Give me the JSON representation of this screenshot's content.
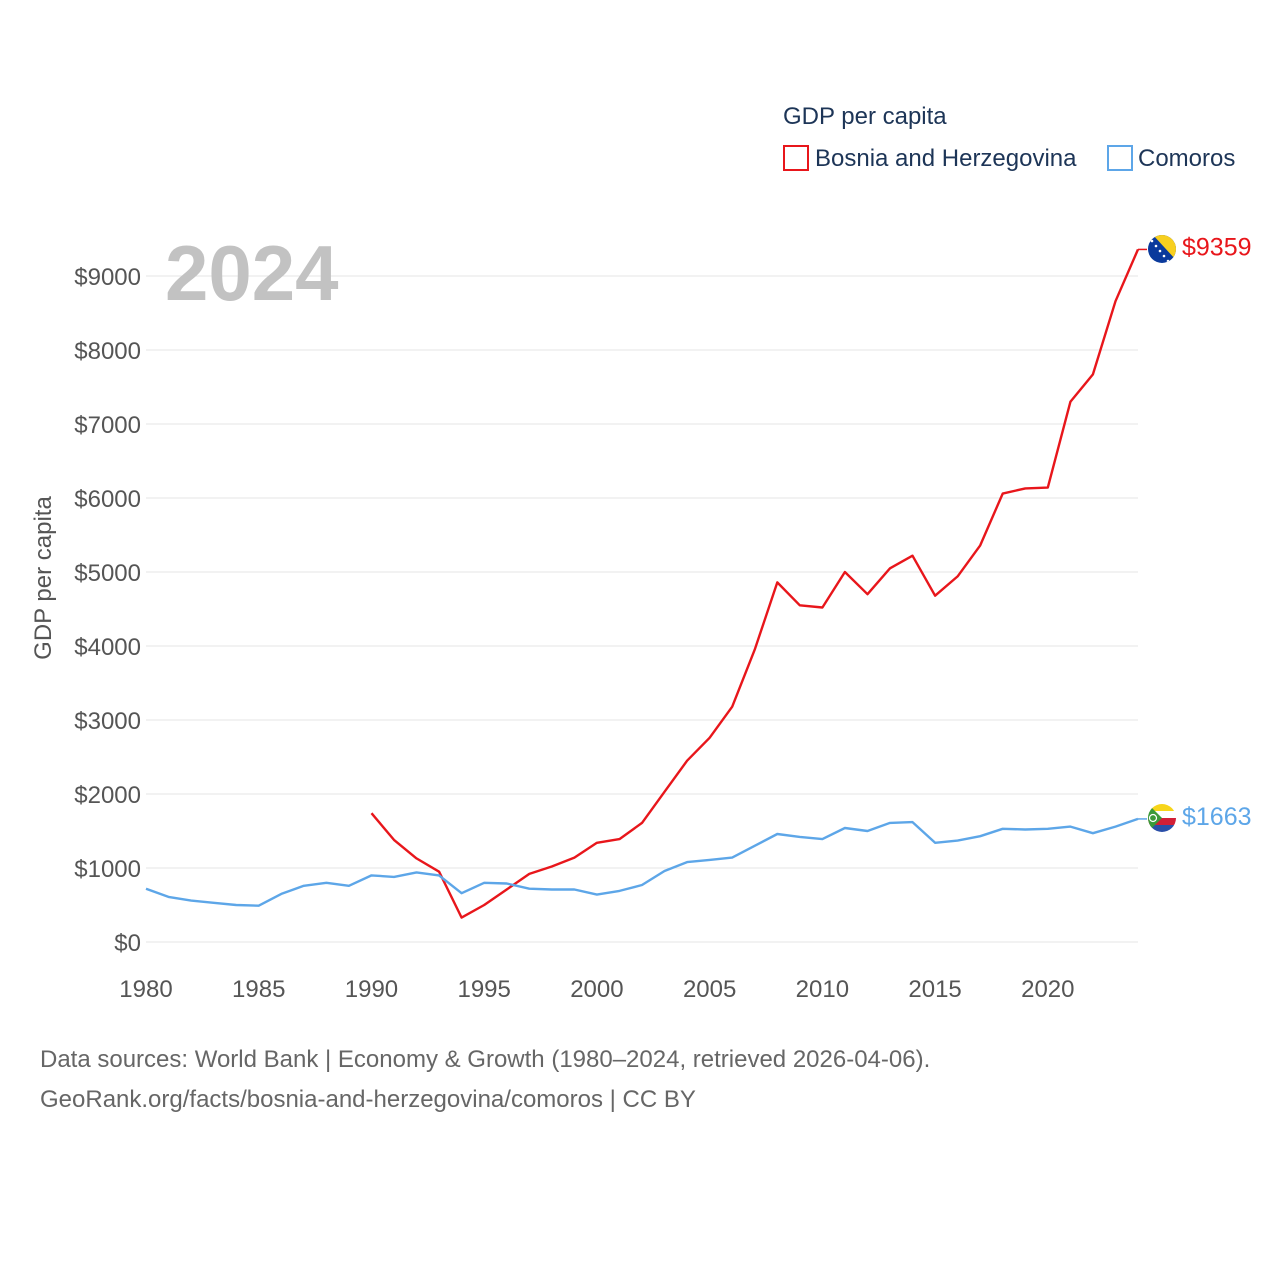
{
  "chart_data": {
    "type": "line",
    "title": "GDP per capita",
    "year_label": "2024",
    "ylabel": "GDP per capita",
    "xlabel": "",
    "xlim": [
      1980,
      2024
    ],
    "ylim": [
      0,
      9600
    ],
    "x_ticks": [
      1980,
      1985,
      1990,
      1995,
      2000,
      2005,
      2010,
      2015,
      2020
    ],
    "y_ticks": [
      0,
      1000,
      2000,
      3000,
      4000,
      5000,
      6000,
      7000,
      8000,
      9000
    ],
    "y_tick_labels": [
      "$0",
      "$1000",
      "$2000",
      "$3000",
      "$4000",
      "$5000",
      "$6000",
      "$7000",
      "$8000",
      "$9000"
    ],
    "grid": true,
    "legend_position": "top-right",
    "series": [
      {
        "name": "Bosnia and Herzegovina",
        "color": "#e8161b",
        "end_label": "$9359",
        "flag_icon": "bosnia-flag-icon",
        "x": [
          1990,
          1991,
          1992,
          1993,
          1994,
          1995,
          1996,
          1997,
          1998,
          1999,
          2000,
          2001,
          2002,
          2003,
          2004,
          2005,
          2006,
          2007,
          2008,
          2009,
          2010,
          2011,
          2012,
          2013,
          2014,
          2015,
          2016,
          2017,
          2018,
          2019,
          2020,
          2021,
          2022,
          2023,
          2024
        ],
        "values": [
          1740,
          1380,
          1130,
          950,
          330,
          500,
          710,
          920,
          1020,
          1140,
          1340,
          1390,
          1610,
          2030,
          2450,
          2760,
          3180,
          3950,
          4860,
          4550,
          4520,
          5000,
          4700,
          5050,
          5220,
          4680,
          4940,
          5360,
          6060,
          6130,
          6140,
          7300,
          7670,
          8660,
          9359
        ]
      },
      {
        "name": "Comoros",
        "color": "#5da6e8",
        "end_label": "$1663",
        "flag_icon": "comoros-flag-icon",
        "x": [
          1980,
          1981,
          1982,
          1983,
          1984,
          1985,
          1986,
          1987,
          1988,
          1989,
          1990,
          1991,
          1992,
          1993,
          1994,
          1995,
          1996,
          1997,
          1998,
          1999,
          2000,
          2001,
          2002,
          2003,
          2004,
          2005,
          2006,
          2007,
          2008,
          2009,
          2010,
          2011,
          2012,
          2013,
          2014,
          2015,
          2016,
          2017,
          2018,
          2019,
          2020,
          2021,
          2022,
          2023,
          2024
        ],
        "values": [
          720,
          610,
          560,
          530,
          500,
          490,
          650,
          760,
          800,
          760,
          900,
          880,
          940,
          900,
          660,
          800,
          790,
          720,
          710,
          710,
          640,
          690,
          770,
          960,
          1080,
          1110,
          1140,
          1300,
          1460,
          1420,
          1390,
          1540,
          1500,
          1610,
          1620,
          1340,
          1370,
          1430,
          1530,
          1520,
          1530,
          1560,
          1470,
          1560,
          1663
        ]
      }
    ]
  },
  "footer": {
    "line1": "Data sources: World Bank | Economy & Growth (1980–2024, retrieved 2026-04-06).",
    "line2": "GeoRank.org/facts/bosnia-and-herzegovina/comoros | CC BY"
  }
}
